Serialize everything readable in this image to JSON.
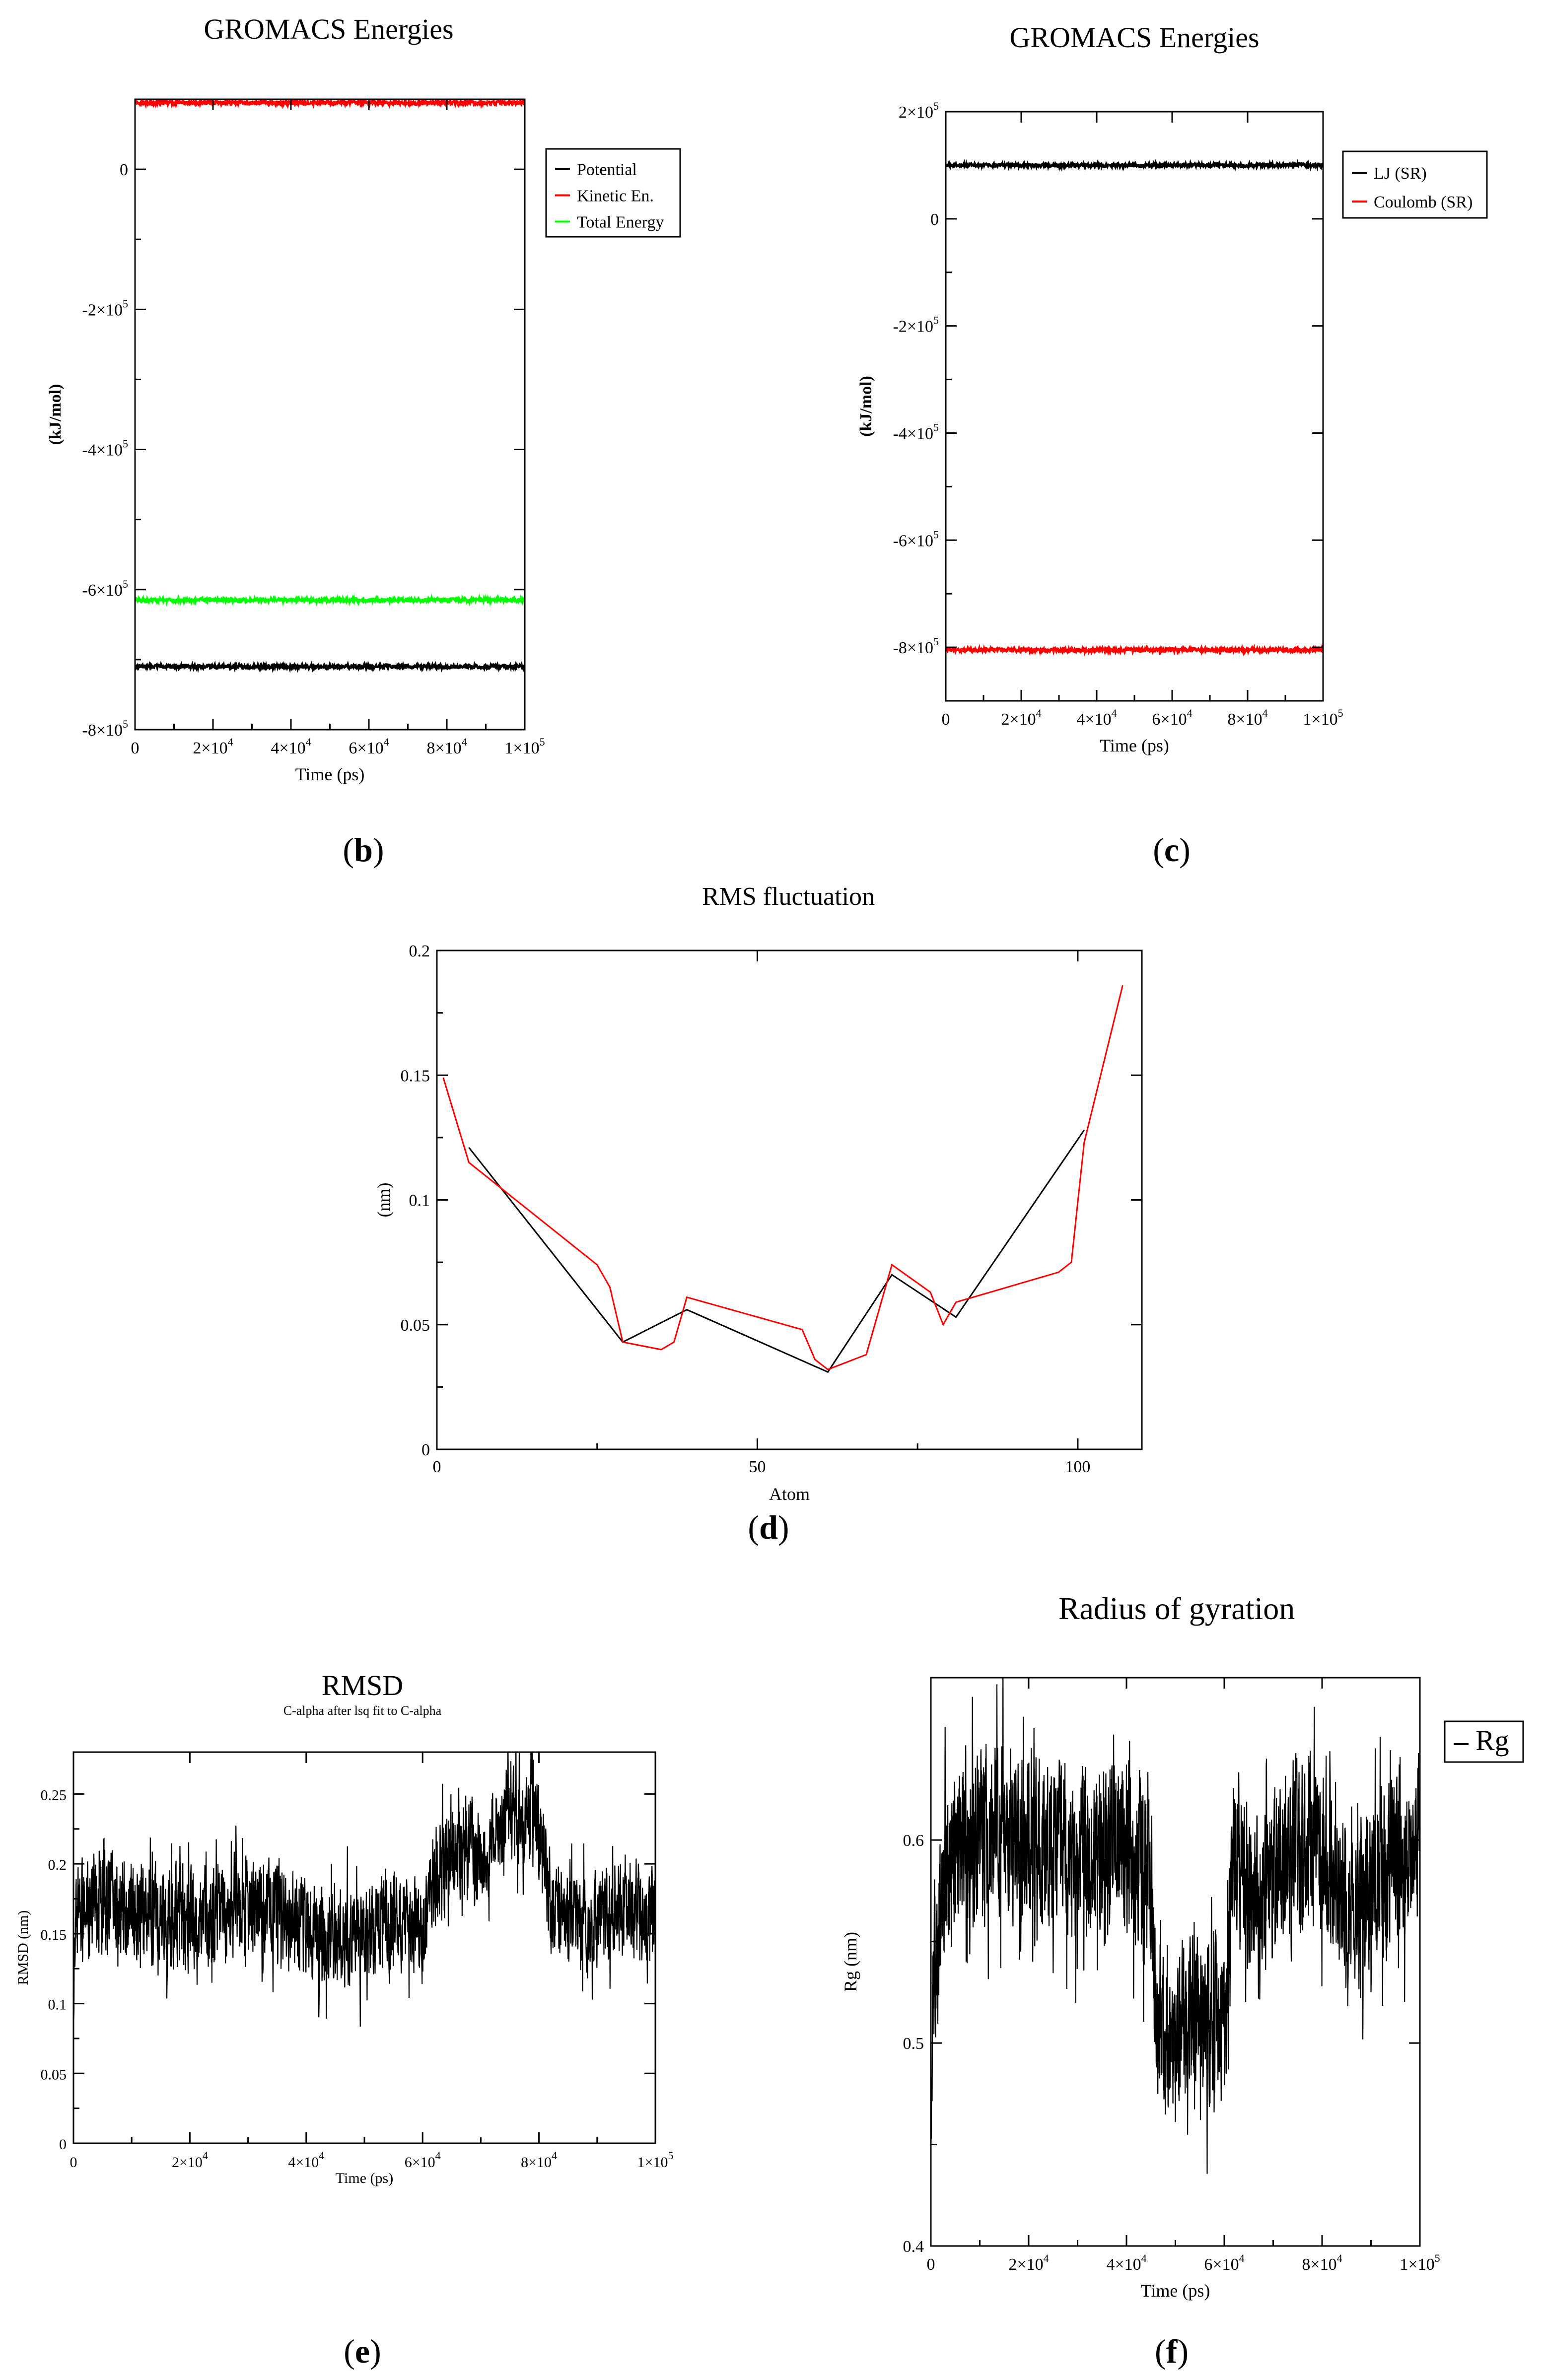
{
  "panel_labels": {
    "b": "b",
    "c": "c",
    "d": "d",
    "e": "e",
    "f": "f"
  },
  "chart_data": [
    {
      "id": "b",
      "type": "line",
      "title": "GROMACS Energies",
      "xlabel": "Time (ps)",
      "ylabel": "(kJ/mol)",
      "xlim": [
        0,
        100000
      ],
      "ylim": [
        -800000,
        100000
      ],
      "xticks": [
        {
          "value": 0,
          "mant": "0",
          "exp": ""
        },
        {
          "value": 20000,
          "mant": "2×10",
          "exp": "4"
        },
        {
          "value": 40000,
          "mant": "4×10",
          "exp": "4"
        },
        {
          "value": 60000,
          "mant": "6×10",
          "exp": "4"
        },
        {
          "value": 80000,
          "mant": "8×10",
          "exp": "4"
        },
        {
          "value": 100000,
          "mant": "1×10",
          "exp": "5"
        }
      ],
      "yticks": [
        {
          "value": 0,
          "mant": "0",
          "exp": ""
        },
        {
          "value": -200000,
          "mant": "-2×10",
          "exp": "5"
        },
        {
          "value": -400000,
          "mant": "-4×10",
          "exp": "5"
        },
        {
          "value": -600000,
          "mant": "-6×10",
          "exp": "5"
        },
        {
          "value": -800000,
          "mant": "-8×10",
          "exp": "5"
        }
      ],
      "series": [
        {
          "name": "Potential",
          "color": "#000000",
          "value": -710000
        },
        {
          "name": "Kinetic En.",
          "color": "#ff0000",
          "value": 95000
        },
        {
          "name": "Total Energy",
          "color": "#00ff00",
          "value": -615000
        }
      ],
      "legend": "top-right"
    },
    {
      "id": "c",
      "type": "line",
      "title": "GROMACS Energies",
      "xlabel": "Time (ps)",
      "ylabel": "(kJ/mol)",
      "xlim": [
        0,
        100000
      ],
      "ylim": [
        -900000,
        200000
      ],
      "xticks": [
        {
          "value": 0,
          "mant": "0",
          "exp": ""
        },
        {
          "value": 20000,
          "mant": "2×10",
          "exp": "4"
        },
        {
          "value": 40000,
          "mant": "4×10",
          "exp": "4"
        },
        {
          "value": 60000,
          "mant": "6×10",
          "exp": "4"
        },
        {
          "value": 80000,
          "mant": "8×10",
          "exp": "4"
        },
        {
          "value": 100000,
          "mant": "1×10",
          "exp": "5"
        }
      ],
      "yticks": [
        {
          "value": 200000,
          "mant": "2×10",
          "exp": "5"
        },
        {
          "value": 0,
          "mant": "0",
          "exp": ""
        },
        {
          "value": -200000,
          "mant": "-2×10",
          "exp": "5"
        },
        {
          "value": -400000,
          "mant": "-4×10",
          "exp": "5"
        },
        {
          "value": -600000,
          "mant": "-6×10",
          "exp": "5"
        },
        {
          "value": -800000,
          "mant": "-8×10",
          "exp": "5"
        }
      ],
      "series": [
        {
          "name": "LJ (SR)",
          "color": "#000000",
          "value": 100000
        },
        {
          "name": "Coulomb (SR)",
          "color": "#ff0000",
          "value": -805000
        }
      ],
      "legend": "top-right"
    },
    {
      "id": "d",
      "type": "line",
      "title": "RMS fluctuation",
      "xlabel": "Atom",
      "ylabel": "(nm)",
      "xlim": [
        0,
        110
      ],
      "ylim": [
        0,
        0.2
      ],
      "xticks": [
        0,
        50,
        100
      ],
      "yticks": [
        0,
        0.05,
        0.1,
        0.15,
        0.2
      ],
      "series": [
        {
          "name": "black",
          "color": "#000000",
          "x": [
            5,
            29,
            39,
            61,
            71,
            81,
            101
          ],
          "y": [
            0.121,
            0.043,
            0.056,
            0.031,
            0.07,
            0.053,
            0.128
          ]
        },
        {
          "name": "red",
          "color": "#ff0000",
          "x": [
            1,
            5,
            25,
            27,
            29,
            35,
            37,
            39,
            57,
            59,
            61,
            67,
            71,
            77,
            79,
            81,
            97,
            99,
            101,
            107
          ],
          "y": [
            0.149,
            0.115,
            0.074,
            0.065,
            0.043,
            0.04,
            0.043,
            0.061,
            0.048,
            0.036,
            0.032,
            0.038,
            0.074,
            0.063,
            0.05,
            0.059,
            0.071,
            0.075,
            0.123,
            0.186
          ]
        }
      ]
    },
    {
      "id": "e",
      "type": "line",
      "title": "RMSD",
      "subtitle": "C-alpha after lsq fit to C-alpha",
      "xlabel": "Time (ps)",
      "ylabel": "RMSD (nm)",
      "xlim": [
        0,
        100000
      ],
      "ylim": [
        0,
        0.28
      ],
      "xticks": [
        {
          "value": 0,
          "mant": "0",
          "exp": ""
        },
        {
          "value": 20000,
          "mant": "2×10",
          "exp": "4"
        },
        {
          "value": 40000,
          "mant": "4×10",
          "exp": "4"
        },
        {
          "value": 60000,
          "mant": "6×10",
          "exp": "4"
        },
        {
          "value": 80000,
          "mant": "8×10",
          "exp": "4"
        },
        {
          "value": 100000,
          "mant": "1×10",
          "exp": "5"
        }
      ],
      "yticks": [
        0,
        0.05,
        0.1,
        0.15,
        0.2,
        0.25
      ],
      "series": [
        {
          "name": "RMSD",
          "color": "#000000",
          "x": [
            0,
            500,
            2000,
            5000,
            10000,
            15000,
            20000,
            25000,
            30000,
            35000,
            40000,
            45000,
            50000,
            55000,
            60000,
            62000,
            65000,
            68000,
            70000,
            72000,
            75000,
            78000,
            80000,
            82000,
            85000,
            90000,
            95000,
            100000
          ],
          "y": [
            0.1,
            0.16,
            0.17,
            0.17,
            0.17,
            0.165,
            0.16,
            0.16,
            0.165,
            0.17,
            0.15,
            0.15,
            0.15,
            0.16,
            0.15,
            0.19,
            0.21,
            0.22,
            0.2,
            0.22,
            0.24,
            0.23,
            0.23,
            0.17,
            0.16,
            0.16,
            0.17,
            0.17
          ],
          "noise": 0.03
        }
      ]
    },
    {
      "id": "f",
      "type": "line",
      "title": "Radius of gyration",
      "xlabel": "Time (ps)",
      "ylabel": "Rg (nm)",
      "xlim": [
        0,
        100000
      ],
      "ylim": [
        0.4,
        0.68
      ],
      "xticks": [
        {
          "value": 0,
          "mant": "0",
          "exp": ""
        },
        {
          "value": 20000,
          "mant": "2×10",
          "exp": "4"
        },
        {
          "value": 40000,
          "mant": "4×10",
          "exp": "4"
        },
        {
          "value": 60000,
          "mant": "6×10",
          "exp": "4"
        },
        {
          "value": 80000,
          "mant": "8×10",
          "exp": "4"
        },
        {
          "value": 100000,
          "mant": "1×10",
          "exp": "5"
        }
      ],
      "yticks": [
        0.4,
        0.5,
        0.6
      ],
      "series": [
        {
          "name": "Rg",
          "color": "#000000",
          "x": [
            0,
            1000,
            3000,
            8000,
            15000,
            20000,
            30000,
            40000,
            45000,
            46000,
            50000,
            55000,
            60000,
            61000,
            62000,
            65000,
            70000,
            75000,
            80000,
            85000,
            90000,
            95000,
            100000
          ],
          "y": [
            0.49,
            0.55,
            0.58,
            0.61,
            0.61,
            0.6,
            0.59,
            0.6,
            0.58,
            0.51,
            0.5,
            0.51,
            0.51,
            0.56,
            0.6,
            0.57,
            0.58,
            0.6,
            0.59,
            0.57,
            0.58,
            0.59,
            0.6
          ],
          "noise": 0.035
        }
      ],
      "legend": "top-right"
    }
  ]
}
